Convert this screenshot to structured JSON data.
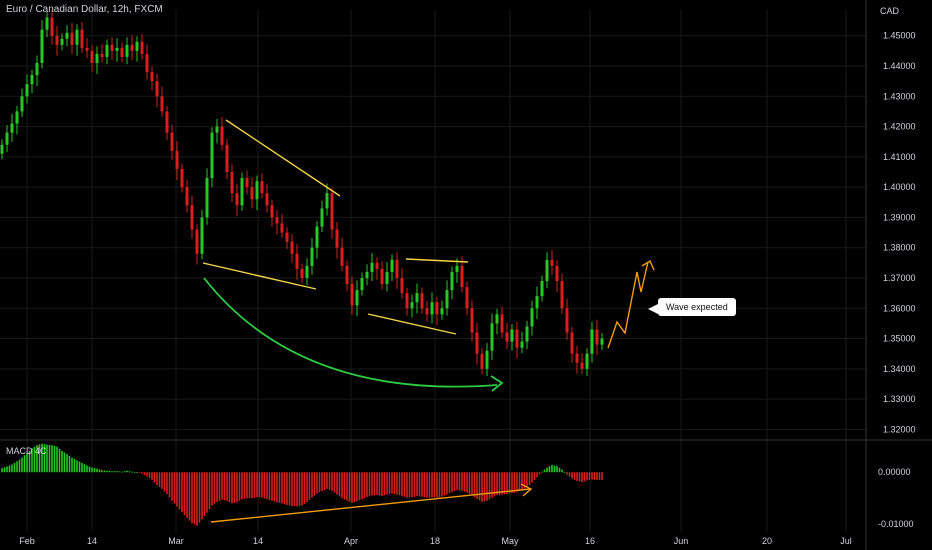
{
  "header": {
    "title": "Euro / Canadian Dollar, 12h, FXCM",
    "currency": "CAD"
  },
  "indicator": {
    "name": "MACD 4C"
  },
  "annotation": {
    "callout_text": "Wave expected"
  },
  "colors": {
    "up": "#26c826",
    "down": "#d81e1e",
    "pattern_lines": "#f5d547",
    "curve_arrow": "#2ecc40",
    "forecast": "#f39c12",
    "macd_divergence": "#f39c12",
    "grid": "#1a1a1a",
    "separator": "#333333"
  },
  "chart_data": [
    {
      "type": "line",
      "subtype": "candlestick",
      "title": "Euro / Canadian Dollar, 12h, FXCM",
      "x_ticks": [
        "Feb",
        "14",
        "Mar",
        "14",
        "Apr",
        "18",
        "May",
        "16",
        "Jun",
        "20",
        "Jul"
      ],
      "y_ticks": [
        "1.45000",
        "1.44000",
        "1.43000",
        "1.42000",
        "1.41000",
        "1.40000",
        "1.39000",
        "1.38000",
        "1.37000",
        "1.36000",
        "1.35000",
        "1.34000",
        "1.33000",
        "1.32000"
      ],
      "ylim": [
        1.3165,
        1.4585
      ],
      "series": [
        {
          "values": [
            1.414,
            1.418,
            1.421,
            1.425,
            1.43,
            1.434,
            1.437,
            1.441,
            1.452,
            1.456,
            1.45,
            1.447,
            1.449,
            1.451,
            1.447,
            1.452,
            1.446,
            1.445,
            1.441,
            1.444,
            1.443,
            1.447,
            1.445,
            1.446,
            1.443,
            1.447,
            1.445,
            1.448,
            1.444,
            1.438,
            1.435,
            1.43,
            1.425,
            1.418,
            1.412,
            1.406,
            1.4,
            1.394,
            1.386,
            1.378,
            1.39,
            1.403,
            1.418,
            1.42,
            1.414,
            1.405,
            1.398,
            1.394,
            1.403,
            1.4,
            1.396,
            1.402,
            1.398,
            1.394,
            1.39,
            1.388,
            1.385,
            1.382,
            1.378,
            1.373,
            1.37,
            1.374,
            1.38,
            1.387,
            1.393,
            1.398,
            1.386,
            1.38,
            1.374,
            1.368,
            1.361,
            1.366,
            1.37,
            1.372,
            1.375,
            1.373,
            1.368,
            1.372,
            1.376,
            1.37,
            1.365,
            1.36,
            1.362,
            1.365,
            1.36,
            1.358,
            1.362,
            1.358,
            1.36,
            1.366,
            1.372,
            1.374,
            1.367,
            1.36,
            1.352,
            1.345,
            1.34,
            1.346,
            1.355,
            1.358,
            1.352,
            1.349,
            1.353,
            1.347,
            1.349,
            1.354,
            1.36,
            1.364,
            1.369,
            1.376,
            1.374,
            1.369,
            1.36,
            1.352,
            1.345,
            1.342,
            1.34,
            1.345,
            1.353,
            1.348,
            1.35
          ]
        }
      ]
    },
    {
      "type": "bar",
      "title": "MACD 4C",
      "y_ticks": [
        "0.00000",
        "-0.01000"
      ],
      "ylim": [
        -0.0115,
        0.0062
      ],
      "series": [
        {
          "values": [
            0.0008,
            0.0011,
            0.0015,
            0.0021,
            0.0028,
            0.0037,
            0.0046,
            0.0052,
            0.0055,
            0.0053,
            0.0052,
            0.0049,
            0.0041,
            0.0035,
            0.0028,
            0.0023,
            0.0018,
            0.0013,
            0.0009,
            0.0007,
            0.0004,
            0.0003,
            0.0002,
            0.0002,
            0.0001,
            0.0003,
            0.0001,
            0.0,
            -0.0003,
            -0.0008,
            -0.0015,
            -0.0025,
            -0.0032,
            -0.0042,
            -0.0055,
            -0.0066,
            -0.0077,
            -0.0088,
            -0.0098,
            -0.0103,
            -0.0091,
            -0.0078,
            -0.0064,
            -0.0057,
            -0.0053,
            -0.0055,
            -0.006,
            -0.0058,
            -0.0052,
            -0.005,
            -0.005,
            -0.0048,
            -0.0049,
            -0.0052,
            -0.0055,
            -0.0058,
            -0.006,
            -0.0063,
            -0.0065,
            -0.0066,
            -0.0064,
            -0.0058,
            -0.0049,
            -0.0041,
            -0.0036,
            -0.0032,
            -0.0036,
            -0.0043,
            -0.005,
            -0.0055,
            -0.0059,
            -0.0056,
            -0.0052,
            -0.0048,
            -0.0045,
            -0.0044,
            -0.0046,
            -0.0043,
            -0.0041,
            -0.0043,
            -0.0046,
            -0.0049,
            -0.0048,
            -0.0046,
            -0.0047,
            -0.0049,
            -0.0048,
            -0.0049,
            -0.0047,
            -0.0043,
            -0.0038,
            -0.0034,
            -0.0036,
            -0.0039,
            -0.0045,
            -0.0051,
            -0.0057,
            -0.0055,
            -0.0049,
            -0.0044,
            -0.0043,
            -0.0042,
            -0.004,
            -0.0038,
            -0.0034,
            -0.0029,
            -0.002,
            -0.001,
            0.0001,
            0.0009,
            0.0014,
            0.0012,
            0.0005,
            -0.0005,
            -0.0012,
            -0.0017,
            -0.0019,
            -0.0016,
            -0.0014,
            -0.0015,
            -0.0015
          ]
        }
      ]
    }
  ]
}
